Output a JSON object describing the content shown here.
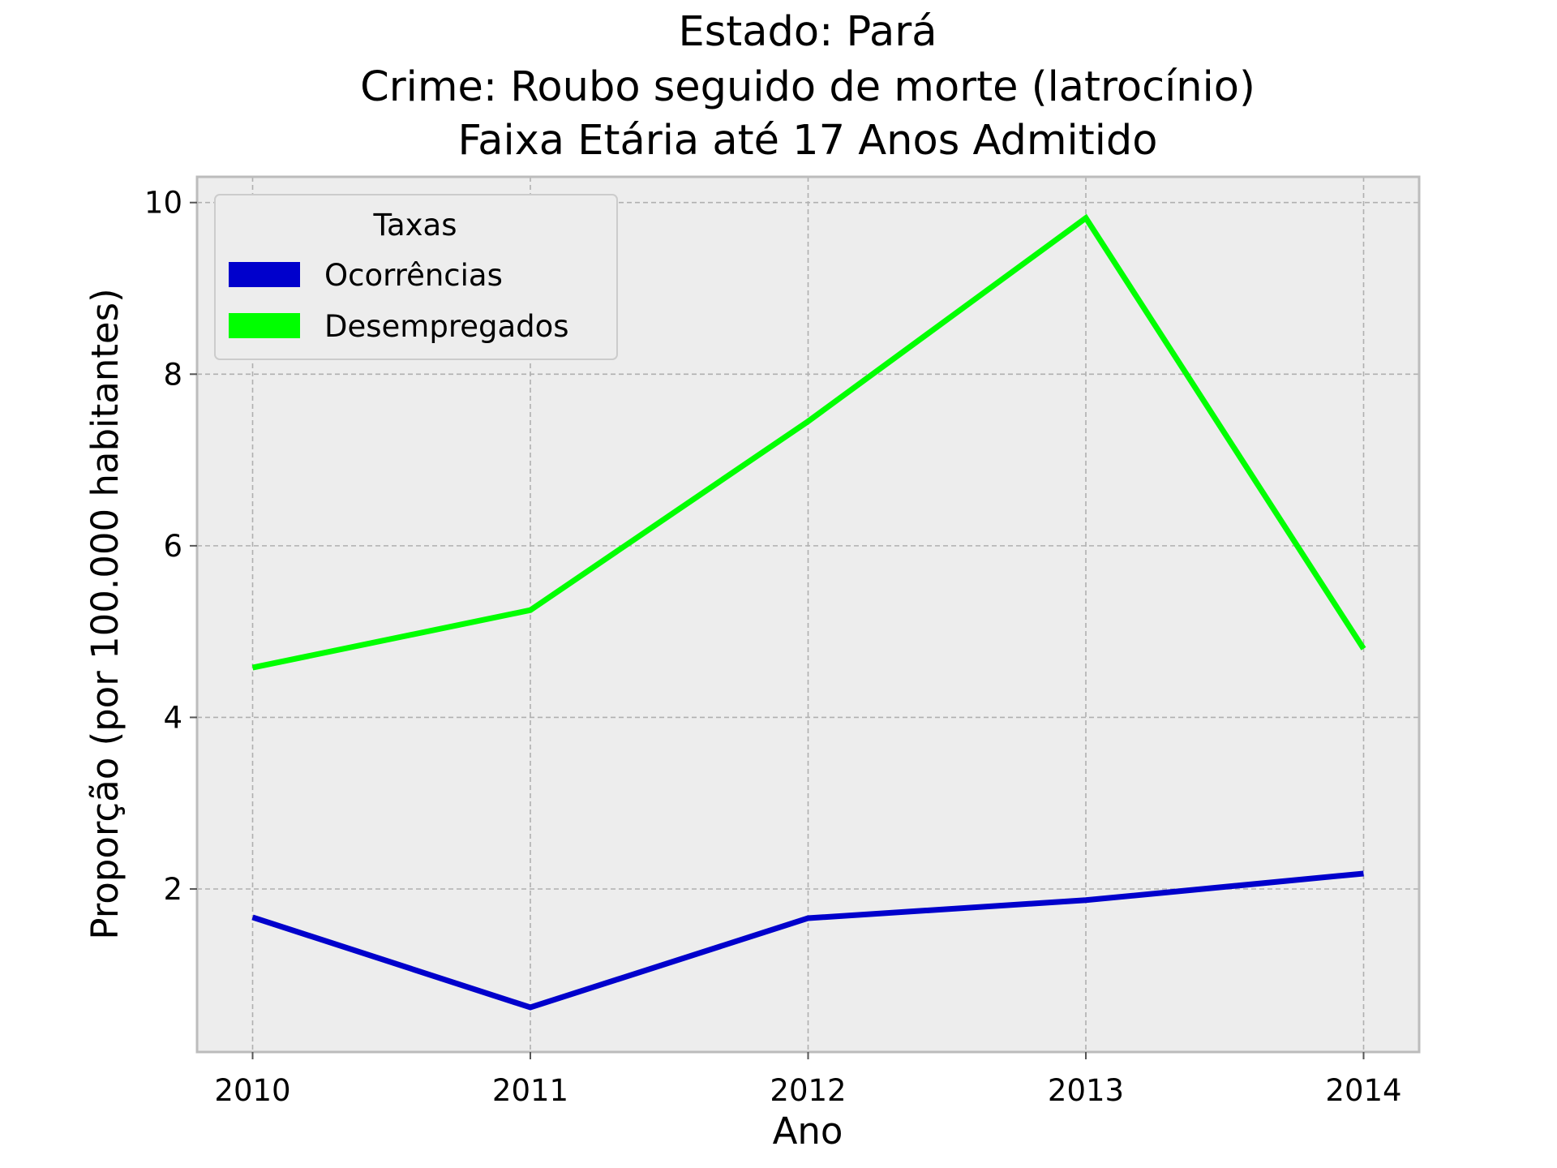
{
  "chart_data": {
    "type": "line",
    "title_lines": [
      "Estado: Pará",
      "Crime: Roubo seguido de morte (latrocínio)",
      "Faixa Etária até 17 Anos   Admitido"
    ],
    "xlabel": "Ano",
    "ylabel": "Proporção (por 100.000 habitantes)",
    "x": [
      2010,
      2011,
      2012,
      2013,
      2014
    ],
    "x_tick_labels": [
      "2010",
      "2011",
      "2012",
      "2013",
      "2014"
    ],
    "xlim": [
      2009.8,
      2014.2
    ],
    "y_ticks": [
      2,
      4,
      6,
      8,
      10
    ],
    "y_tick_labels": [
      "2",
      "4",
      "6",
      "8",
      "10"
    ],
    "ylim": [
      0.1,
      10.3
    ],
    "grid": true,
    "legend": {
      "title": "Taxas",
      "position": "top-left"
    },
    "series": [
      {
        "name": "Ocorrências",
        "color": "#0000cc",
        "values": [
          1.67,
          0.62,
          1.66,
          1.87,
          2.18
        ]
      },
      {
        "name": "Desempregados",
        "color": "#00ff00",
        "values": [
          4.58,
          5.25,
          7.45,
          9.82,
          4.8
        ]
      }
    ],
    "colors": {
      "plot_background": "#ededed",
      "frame": "#bcbcbc",
      "grid": "#b0b0b0"
    }
  }
}
